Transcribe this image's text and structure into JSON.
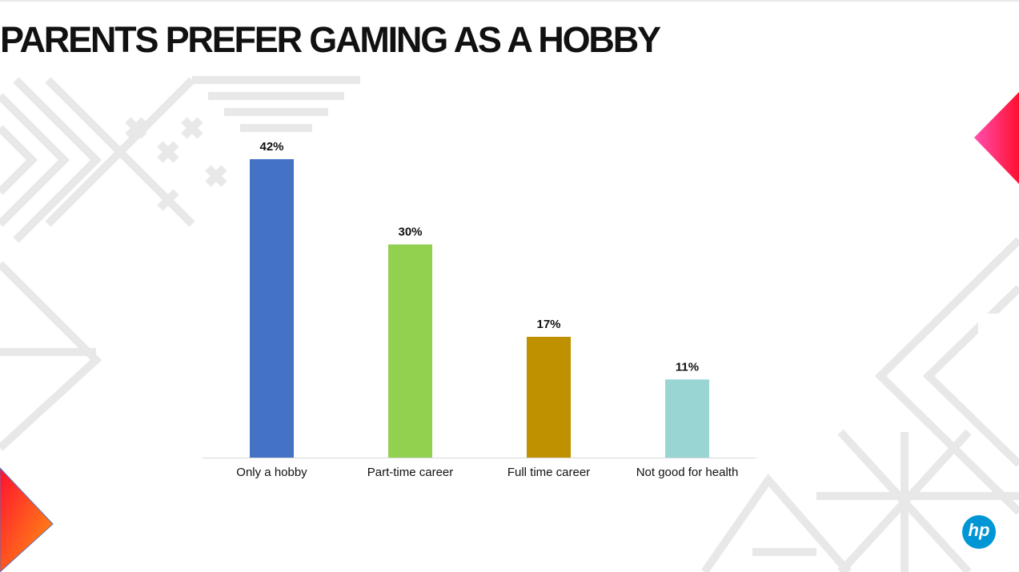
{
  "chart_data": {
    "type": "bar",
    "title": "PARENTS PREFER GAMING AS A HOBBY",
    "categories": [
      "Only a hobby",
      "Part-time career",
      "Full time career",
      "Not good for health"
    ],
    "values": [
      42,
      30,
      17,
      11
    ],
    "value_labels": [
      "42%",
      "30%",
      "17%",
      "11%"
    ],
    "colors": [
      "#4472c4",
      "#92d050",
      "#bf9000",
      "#99d6d3"
    ]
  },
  "logo": "hp"
}
